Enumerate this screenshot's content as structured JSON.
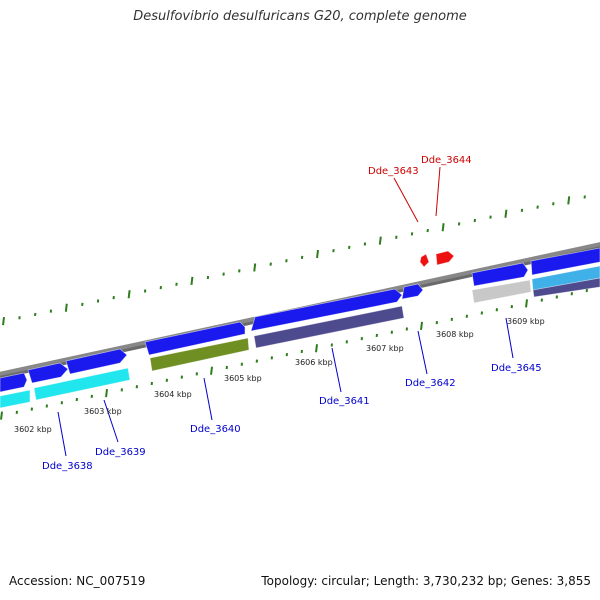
{
  "title": "Desulfovibrio desulfuricans G20, complete genome",
  "footer": {
    "accession": "Accession: NC_007519",
    "summary": "Topology: circular; Length: 3,730,232 bp; Genes: 3,855"
  },
  "colors": {
    "backbone": "#888888",
    "tick": "#2e7d1e",
    "gene_label": "#0000cc",
    "highlight_label": "#cc0000",
    "blue": "#1a1aee",
    "cyan": "#22e6ee",
    "olive": "#6f8f22",
    "slate": "#4e4a8e",
    "gray": "#c8c8c8",
    "red": "#ee1111",
    "lightblue": "#3fb0e8"
  },
  "scale_labels": [
    "3602 kbp",
    "3603 kbp",
    "3604 kbp",
    "3605 kbp",
    "3606 kbp",
    "3607 kbp",
    "3608 kbp",
    "3609 kbp"
  ],
  "gene_labels": [
    "Dde_3638",
    "Dde_3639",
    "Dde_3640",
    "Dde_3641",
    "Dde_3642",
    "Dde_3645"
  ],
  "highlight_labels": [
    "Dde_3643",
    "Dde_3644"
  ]
}
